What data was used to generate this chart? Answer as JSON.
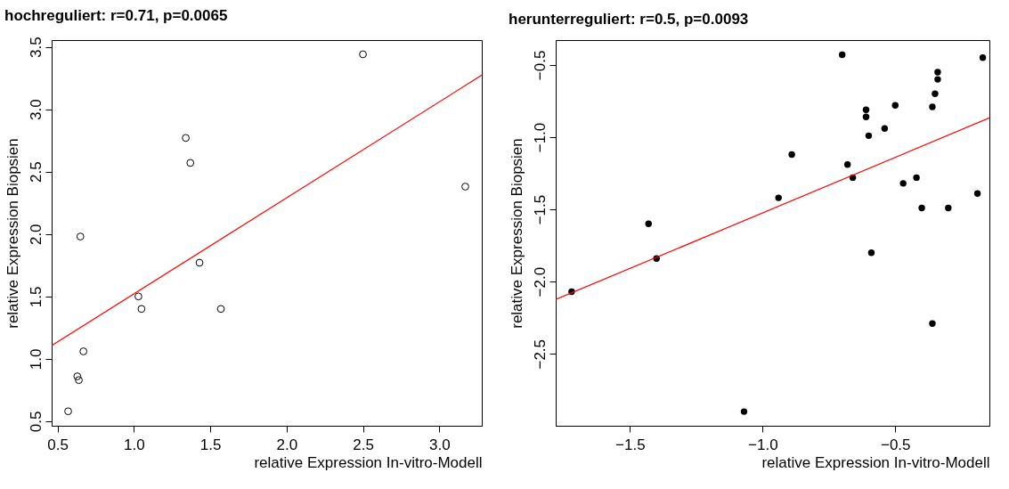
{
  "chart_data": [
    {
      "type": "scatter",
      "title": "hochreguliert: r=0.71, p=0.0065",
      "xlabel": "relative Expression In-vitro-Modell",
      "ylabel": "relative Expression Biopsien",
      "xlim": [
        0.462,
        3.278
      ],
      "ylim": [
        0.464,
        3.554
      ],
      "xticks": [
        0.5,
        {
          "value": 1,
          "label": "1.0"
        },
        1.5,
        {
          "value": 2,
          "label": "2.0"
        },
        2.5,
        {
          "value": 3,
          "label": "3.0"
        }
      ],
      "yticks": [
        0.5,
        {
          "value": 1,
          "label": "1.0"
        },
        1.5,
        {
          "value": 2,
          "label": "2.0"
        },
        2.5,
        {
          "value": 3,
          "label": "3.0"
        },
        3.5
      ],
      "grid": false,
      "series": [
        {
          "color": "#000000",
          "marker": "circle",
          "x": [
            2.5,
            1.34,
            1.37,
            3.17,
            0.65,
            1.43,
            1.03,
            1.05,
            1.57,
            0.67,
            0.63,
            0.64,
            0.57
          ],
          "values": [
            3.44,
            2.77,
            2.57,
            2.38,
            1.98,
            1.77,
            1.5,
            1.4,
            1.4,
            1.06,
            0.86,
            0.83,
            0.58
          ]
        },
        {
          "type": "line",
          "color": "#ff0000",
          "marker": "none",
          "x": [
            0.462,
            3.278
          ],
          "values": [
            1.107,
            3.273
          ]
        }
      ]
    },
    {
      "type": "scatter",
      "title": "herunterreguliert: r=0.5, p=0.0093",
      "xlabel": "relative Expression In-vitro-Modell",
      "ylabel": "relative Expression Biopsien",
      "xlim": [
        -1.78,
        -0.145
      ],
      "ylim": [
        -2.998,
        -0.328
      ],
      "xticks": [
        {
          "value": -1.5,
          "label": "−1.5"
        },
        {
          "value": -1,
          "label": "−1.0"
        },
        {
          "value": -0.5,
          "label": "−0.5"
        }
      ],
      "yticks": [
        {
          "value": -0.5,
          "label": "−0.5"
        },
        {
          "value": -1,
          "label": "−1.0"
        },
        {
          "value": -1.5,
          "label": "−1.5"
        },
        {
          "value": -2,
          "label": "−2.0"
        },
        {
          "value": -2.5,
          "label": "−2.5"
        }
      ],
      "grid": false,
      "series": [
        {
          "color": "#000000",
          "marker": "circle",
          "x": [
            -0.7,
            -0.17,
            -0.34,
            -0.34,
            -0.35,
            -0.36,
            -0.5,
            -0.61,
            -0.61,
            -0.54,
            -0.6,
            -0.89,
            -0.68,
            -0.66,
            -0.42,
            -0.47,
            -0.94,
            -0.19,
            -0.4,
            -0.3,
            -1.43,
            -1.4,
            -0.59,
            -1.72,
            -0.36,
            -1.07
          ],
          "values": [
            -0.43,
            -0.45,
            -0.55,
            -0.6,
            -0.7,
            -0.79,
            -0.78,
            -0.81,
            -0.86,
            -0.94,
            -0.99,
            -1.12,
            -1.19,
            -1.28,
            -1.28,
            -1.32,
            -1.42,
            -1.39,
            -1.49,
            -1.49,
            -1.6,
            -1.84,
            -1.8,
            -2.07,
            -2.29,
            -2.9
          ]
        },
        {
          "type": "line",
          "color": "#ff0000",
          "marker": "none",
          "x": [
            -1.78,
            -0.145
          ],
          "values": [
            -2.124,
            -0.867
          ]
        }
      ]
    }
  ]
}
